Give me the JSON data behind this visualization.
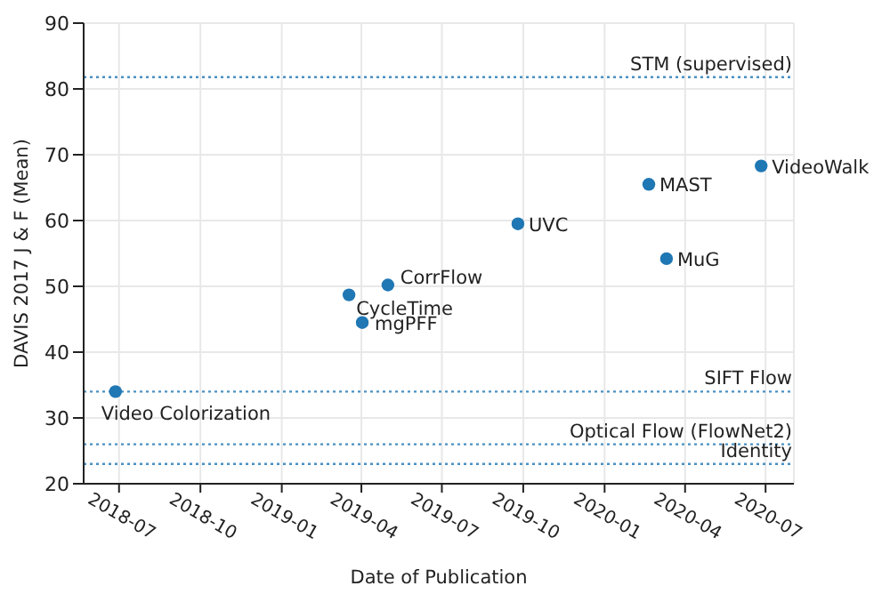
{
  "chart_data": {
    "type": "scatter",
    "xlabel": "Date of Publication",
    "ylabel": "DAVIS 2017 J & F (Mean)",
    "xlim": [
      "2018-05-22",
      "2020-08-02"
    ],
    "xticks": [
      "2018-07",
      "2018-10",
      "2019-01",
      "2019-04",
      "2019-07",
      "2019-10",
      "2020-01",
      "2020-04",
      "2020-07"
    ],
    "ylim": [
      20,
      90
    ],
    "yticks": [
      20,
      30,
      40,
      50,
      60,
      70,
      80,
      90
    ],
    "grid": true,
    "legend": false,
    "marker": "circle",
    "series": [
      {
        "name": "Video Colorization",
        "color": "#1f77b4",
        "x": [
          "2018-06-27"
        ],
        "values": [
          34
        ]
      },
      {
        "name": "CycleTime",
        "color": "#1f77b4",
        "x": [
          "2019-03-18"
        ],
        "values": [
          48.7
        ]
      },
      {
        "name": "mgPFF",
        "color": "#1f77b4",
        "x": [
          "2019-04-02"
        ],
        "values": [
          44.5
        ]
      },
      {
        "name": "CorrFlow",
        "color": "#1f77b4",
        "x": [
          "2019-05-01"
        ],
        "values": [
          50.2
        ]
      },
      {
        "name": "UVC",
        "color": "#1f77b4",
        "x": [
          "2019-09-25"
        ],
        "values": [
          59.5
        ]
      },
      {
        "name": "MAST",
        "color": "#1f77b4",
        "x": [
          "2020-02-20"
        ],
        "values": [
          65.5
        ]
      },
      {
        "name": "MuG",
        "color": "#1f77b4",
        "x": [
          "2020-03-11"
        ],
        "values": [
          54.2
        ]
      },
      {
        "name": "VideoWalk",
        "color": "#1f77b4",
        "x": [
          "2020-06-26"
        ],
        "values": [
          68.3
        ]
      }
    ],
    "ref_lines": [
      {
        "axis": "y",
        "value": 81.8,
        "label": "STM (supervised)",
        "color": "#4a90c2",
        "line_style": "dotted"
      },
      {
        "axis": "y",
        "value": 34,
        "label": "SIFT Flow",
        "color": "#4a90c2",
        "line_style": "dotted"
      },
      {
        "axis": "y",
        "value": 26,
        "label": "Optical Flow (FlowNet2)",
        "color": "#4a90c2",
        "line_style": "dotted"
      },
      {
        "axis": "y",
        "value": 23,
        "label": "Identity",
        "color": "#4a90c2",
        "line_style": "dotted"
      }
    ]
  }
}
